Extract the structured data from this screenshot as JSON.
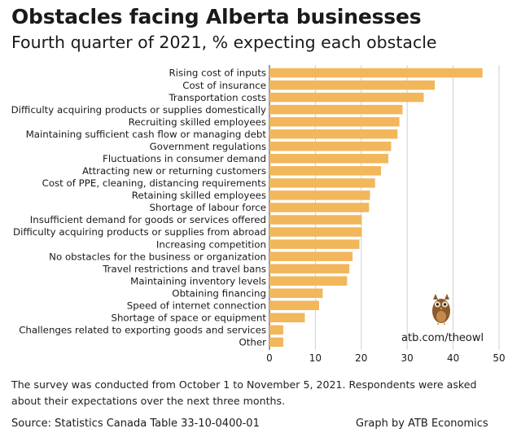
{
  "title": "Obstacles facing Alberta businesses",
  "subtitle": "Fourth quarter of 2021, % expecting each obstacle",
  "note": "The survey was conducted from October 1 to November 5, 2021. Respondents were asked about their expectations over the next three months.",
  "source": "Source: Statistics Canada Table 33-10-0400-01",
  "credit": "Graph by ATB Economics",
  "watermark": "atb.com/theowl",
  "colors": {
    "bar": "#F2B65B",
    "grid": "#cfcfcf",
    "axis": "#555555",
    "owl": "#8B5A2B"
  },
  "chart_data": {
    "type": "bar",
    "orientation": "horizontal",
    "categories": [
      "Rising cost of inputs",
      "Cost of insurance",
      "Transportation costs",
      "Difficulty acquiring products or supplies domestically",
      "Recruiting skilled employees",
      "Maintaining sufficient cash flow or managing debt",
      "Government regulations",
      "Fluctuations in consumer demand",
      "Attracting new or returning customers",
      "Cost of PPE, cleaning, distancing requirements",
      "Retaining skilled employees",
      "Shortage of labour force",
      "Insufficient demand for goods or services offered",
      "Difficulty acquiring products or supplies from abroad",
      "Increasing competition",
      "No obstacles for the business or organization",
      "Travel restrictions and travel bans",
      "Maintaining inventory levels",
      "Obtaining financing",
      "Speed of internet connection",
      "Shortage of space or equipment",
      "Challenges related to exporting goods and services",
      "Other"
    ],
    "values": [
      46.4,
      36.0,
      33.6,
      29.0,
      28.3,
      27.9,
      26.5,
      25.9,
      24.3,
      23.0,
      21.9,
      21.7,
      20.1,
      20.1,
      19.6,
      18.1,
      17.4,
      16.9,
      11.6,
      10.8,
      7.7,
      3.0,
      3.0
    ],
    "xlim": [
      0,
      50
    ],
    "xticks": [
      "0",
      "10",
      "20",
      "30",
      "40",
      "50"
    ],
    "grid": true
  }
}
